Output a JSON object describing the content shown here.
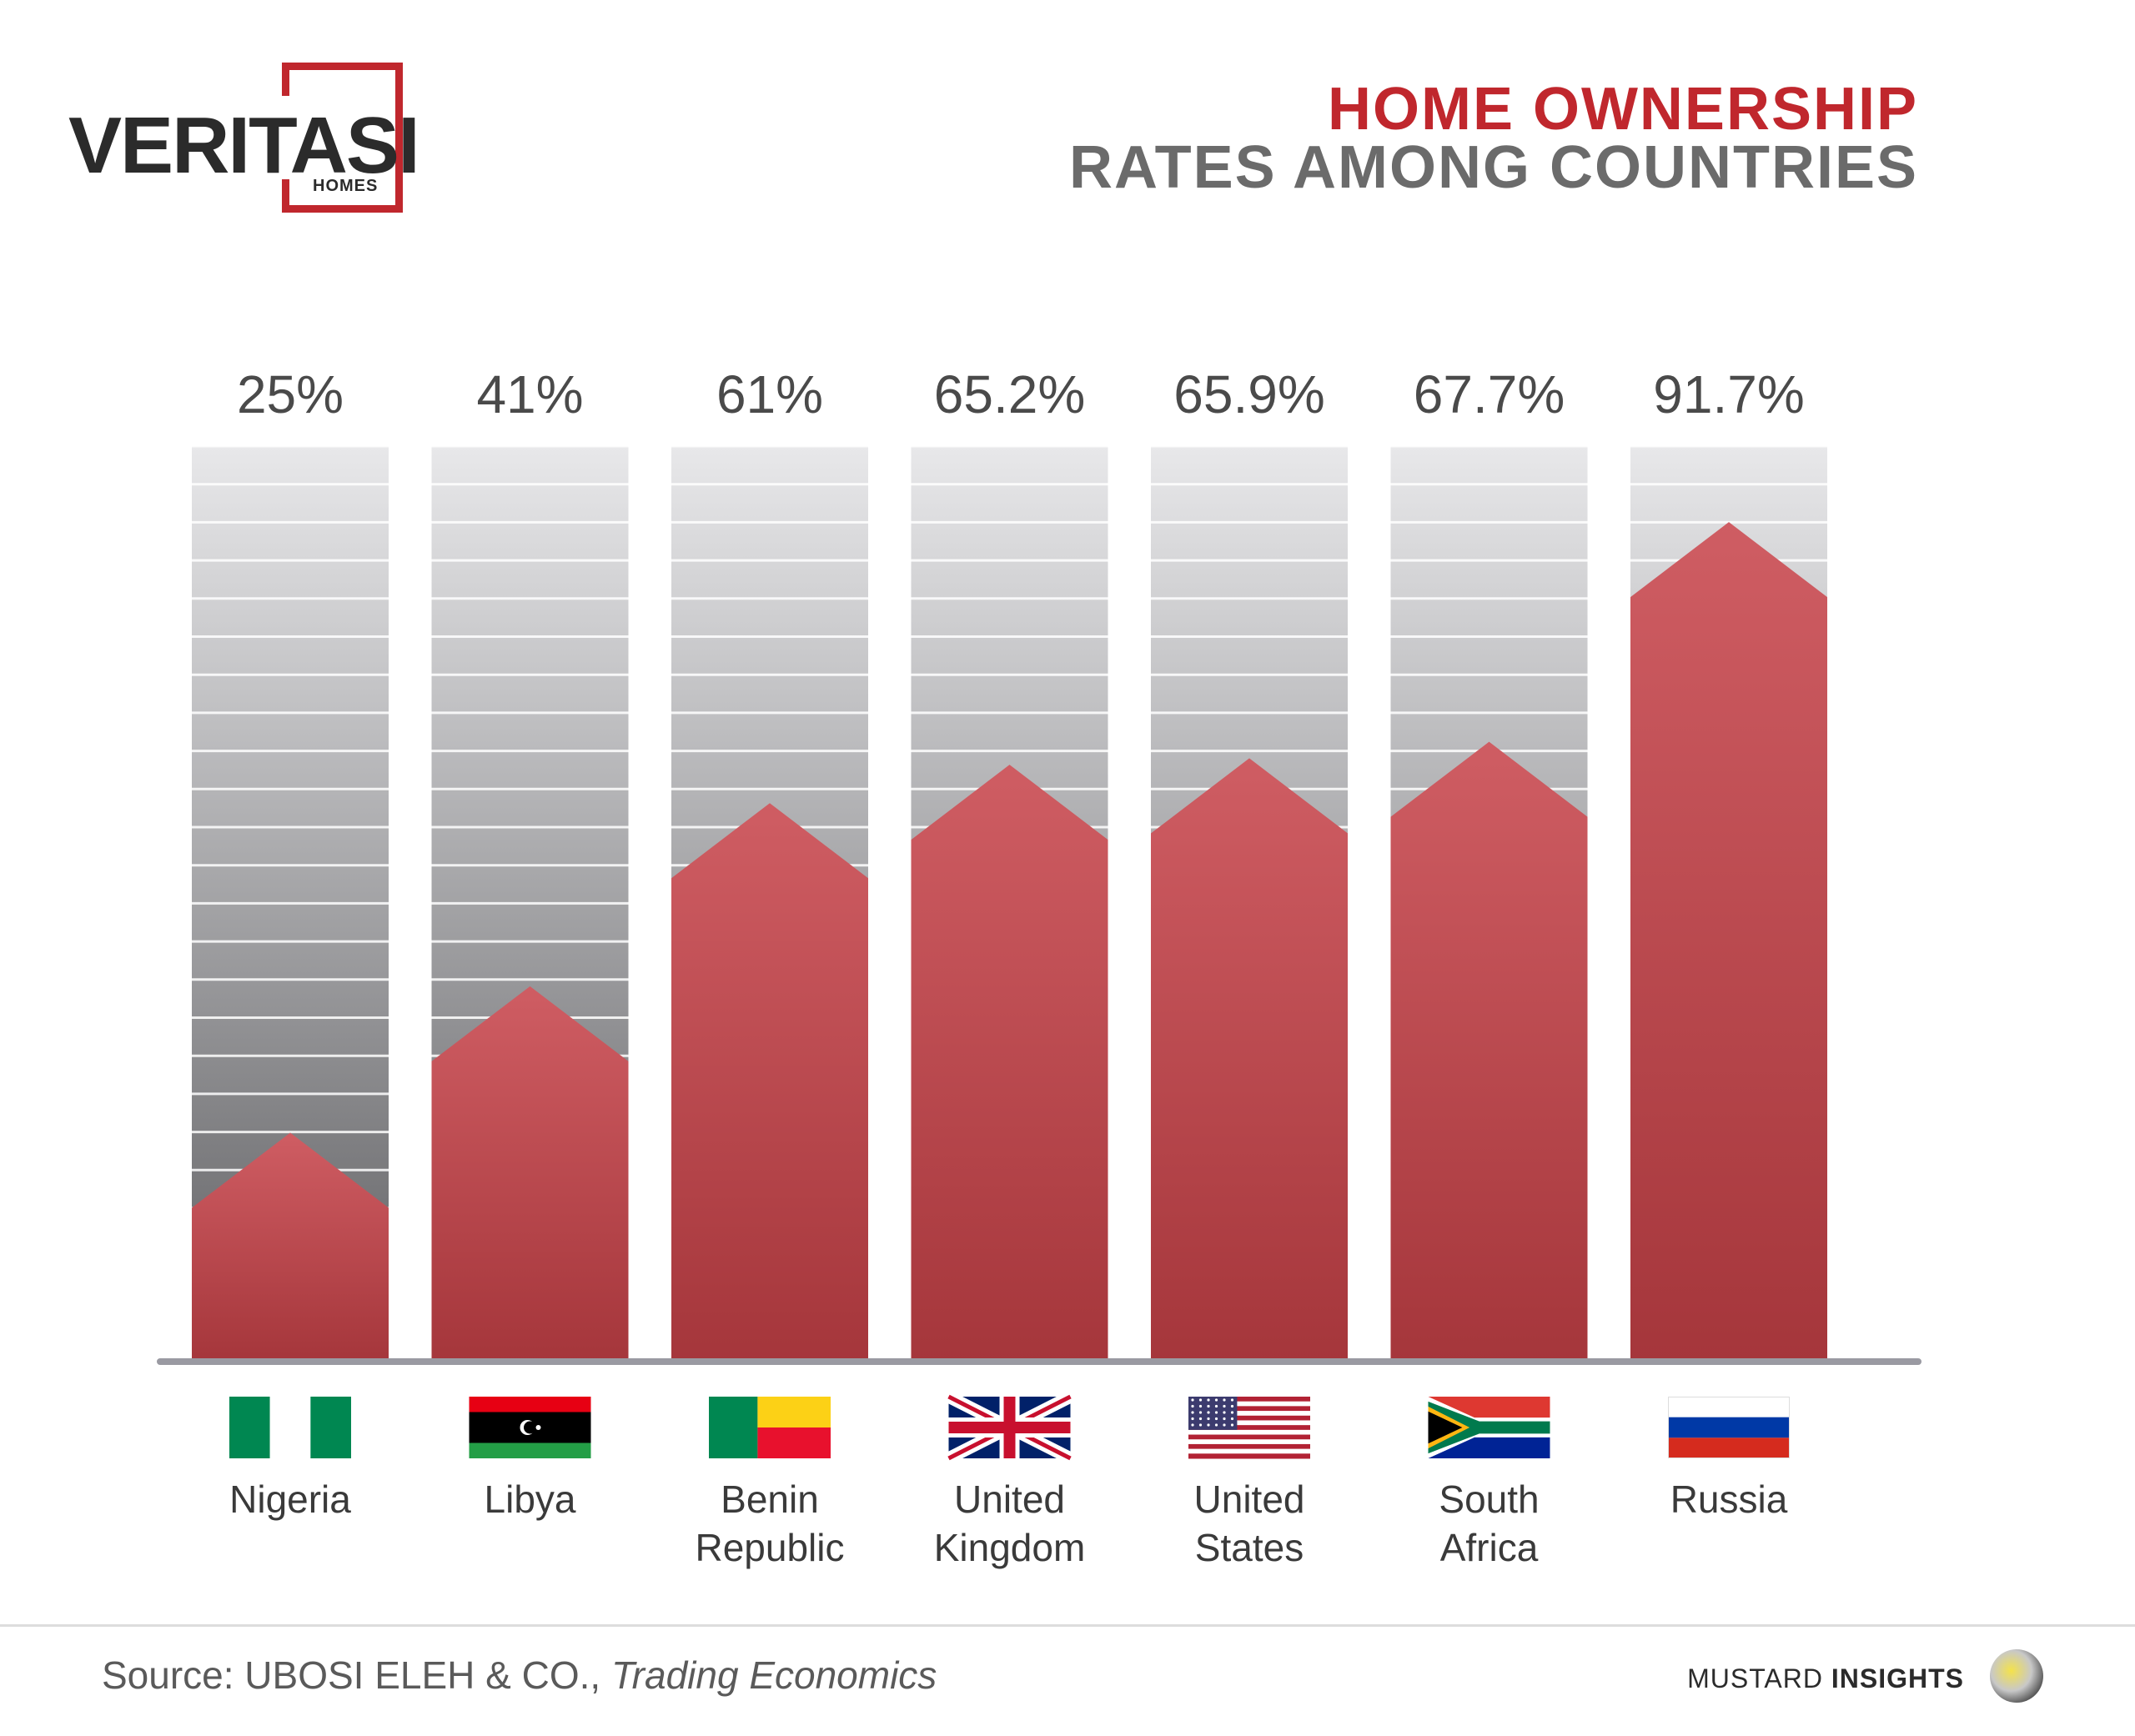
{
  "logo": {
    "name": "VERITASI",
    "sub": "HOMES"
  },
  "title": {
    "line1": "HOME OWNERSHIP",
    "line2": "RATES AMONG COUNTRIES"
  },
  "chart_data": {
    "type": "bar",
    "categories": [
      "Nigeria",
      "Libya",
      "Benin Republic",
      "United Kingdom",
      "United States",
      "South Africa",
      "Russia"
    ],
    "category_lines": [
      [
        "Nigeria"
      ],
      [
        "Libya"
      ],
      [
        "Benin",
        "Republic"
      ],
      [
        "United",
        "Kingdom"
      ],
      [
        "United",
        "States"
      ],
      [
        "South",
        "Africa"
      ],
      [
        "Russia"
      ]
    ],
    "values": [
      25,
      41,
      61,
      65.2,
      65.9,
      67.7,
      91.7
    ],
    "value_labels": [
      "25%",
      "41%",
      "61%",
      "65.2%",
      "65.9%",
      "67.7%",
      "91.7%"
    ],
    "flags": [
      "nigeria-flag",
      "libya-flag",
      "benin-flag",
      "uk-flag",
      "us-flag",
      "south-africa-flag",
      "russia-flag"
    ],
    "ylim": [
      0,
      100
    ],
    "grid": true,
    "colors": {
      "bar": "#c0484e",
      "background_top": "#e6e6e8",
      "background_bottom": "#5f5f62",
      "axis": "#9a9aa2"
    }
  },
  "footer": {
    "source_prefix": "Source: UBOSI ELEH & CO., ",
    "source_italic": "Trading Economics",
    "brand_light": "MUSTARD ",
    "brand_bold": "INSIGHTS"
  }
}
